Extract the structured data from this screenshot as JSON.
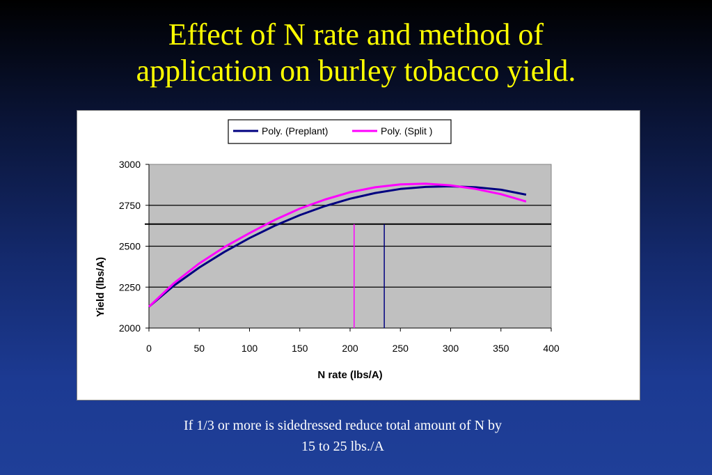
{
  "slide": {
    "title_line1": "Effect of N rate and method of",
    "title_line2": "application on burley tobacco yield.",
    "caption_line1": "If 1/3 or more is sidedressed reduce total amount of N by",
    "caption_line2": "15 to 25 lbs./A"
  },
  "colors": {
    "title": "#ffff00",
    "preplant": "#000080",
    "split": "#ff00ff",
    "plot_bg": "#c0c0c0"
  },
  "chart_data": {
    "type": "line",
    "title": "",
    "xlabel": "N rate (lbs/A)",
    "ylabel": "Yield (lbs/A)",
    "xlim": [
      0,
      400
    ],
    "ylim": [
      2000,
      3000
    ],
    "x_ticks": [
      0,
      50,
      100,
      150,
      200,
      250,
      300,
      350,
      400
    ],
    "y_ticks": [
      2000,
      2250,
      2500,
      2750,
      3000
    ],
    "x_tick_labels": [
      "0",
      "50",
      "100",
      "150",
      "200",
      "250",
      "300",
      "350",
      "400"
    ],
    "y_tick_labels": [
      "2000",
      "2250",
      "2500",
      "2750",
      "3000"
    ],
    "gridlines": "horizontal",
    "legend_position": "top-center",
    "series": [
      {
        "name": "Poly. (Preplant)",
        "color": "#000080",
        "x": [
          0,
          25,
          50,
          75,
          100,
          125,
          150,
          175,
          200,
          225,
          250,
          275,
          300,
          325,
          350,
          375
        ],
        "values": [
          2130,
          2260,
          2370,
          2465,
          2550,
          2625,
          2690,
          2745,
          2790,
          2825,
          2850,
          2862,
          2866,
          2860,
          2845,
          2815
        ]
      },
      {
        "name": "Poly. (Split )",
        "color": "#ff00ff",
        "x": [
          0,
          25,
          50,
          75,
          100,
          125,
          150,
          175,
          200,
          225,
          250,
          275,
          300,
          325,
          350,
          375
        ],
        "values": [
          2130,
          2275,
          2395,
          2495,
          2580,
          2660,
          2730,
          2785,
          2830,
          2860,
          2878,
          2882,
          2872,
          2850,
          2818,
          2773
        ]
      }
    ],
    "reference_line_y": 2635,
    "vertical_markers": [
      {
        "x": 204,
        "y_top": 2635,
        "color": "#ff00ff"
      },
      {
        "x": 234,
        "y_top": 2635,
        "color": "#000080"
      }
    ]
  }
}
